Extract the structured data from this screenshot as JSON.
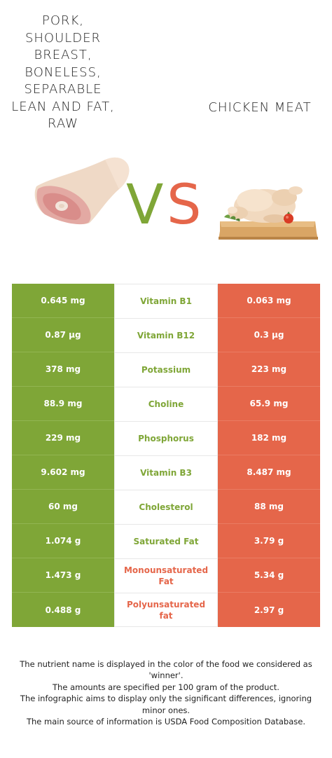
{
  "left_food": {
    "title": "Pork, Shoulder breast, boneless, separable lean and fat, raw",
    "color": "#7fa637",
    "image_icon": "pork-shoulder-image"
  },
  "right_food": {
    "title": "Chicken meat",
    "color": "#e5664a",
    "image_icon": "whole-chicken-on-board-image"
  },
  "vs": {
    "v": "V",
    "s": "S"
  },
  "rows": [
    {
      "nutrient": "Vitamin B1",
      "left": "0.645 mg",
      "right": "0.063 mg",
      "winner": "left"
    },
    {
      "nutrient": "Vitamin B12",
      "left": "0.87 µg",
      "right": "0.3 µg",
      "winner": "left"
    },
    {
      "nutrient": "Potassium",
      "left": "378 mg",
      "right": "223 mg",
      "winner": "left"
    },
    {
      "nutrient": "Choline",
      "left": "88.9 mg",
      "right": "65.9 mg",
      "winner": "left"
    },
    {
      "nutrient": "Phosphorus",
      "left": "229 mg",
      "right": "182 mg",
      "winner": "left"
    },
    {
      "nutrient": "Vitamin B3",
      "left": "9.602 mg",
      "right": "8.487 mg",
      "winner": "left"
    },
    {
      "nutrient": "Cholesterol",
      "left": "60 mg",
      "right": "88 mg",
      "winner": "left"
    },
    {
      "nutrient": "Saturated Fat",
      "left": "1.074 g",
      "right": "3.79 g",
      "winner": "left"
    },
    {
      "nutrient": "Monounsaturated Fat",
      "left": "1.473 g",
      "right": "5.34 g",
      "winner": "right"
    },
    {
      "nutrient": "Polyunsaturated fat",
      "left": "0.488 g",
      "right": "2.97 g",
      "winner": "right"
    }
  ],
  "footnote": [
    "The nutrient name is displayed in the color of the food we considered as 'winner'.",
    "The amounts are specified per 100 gram of the product.",
    "The infographic aims to display only the significant differences, ignoring minor ones.",
    "The main source of information is USDA Food Composition Database."
  ]
}
